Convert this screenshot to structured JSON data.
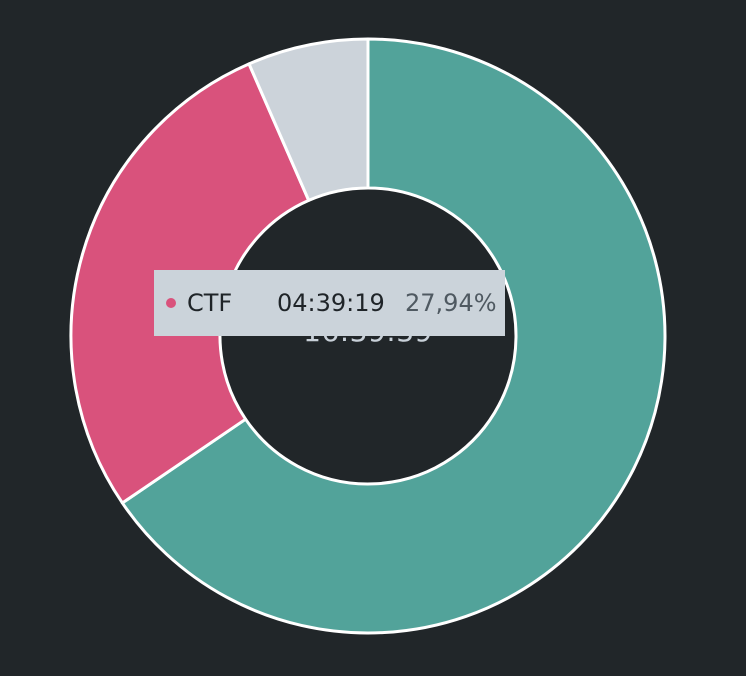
{
  "chart_data": {
    "type": "pie",
    "variant": "donut",
    "total_label": "16:39:39",
    "slices": [
      {
        "name": "",
        "percent": 65.5,
        "color": "#52a39a"
      },
      {
        "name": "CTF",
        "duration": "04:39:19",
        "percent": 27.94,
        "color": "#d9527c"
      },
      {
        "name": "",
        "percent": 6.56,
        "color": "#ccd3da"
      }
    ],
    "start_angle_deg": 0,
    "direction": "clockwise",
    "stroke_color": "#ffffff"
  },
  "tooltip": {
    "name": "CTF",
    "duration": "04:39:19",
    "percent_label": "27,94%",
    "dot_color": "#d9527c"
  }
}
